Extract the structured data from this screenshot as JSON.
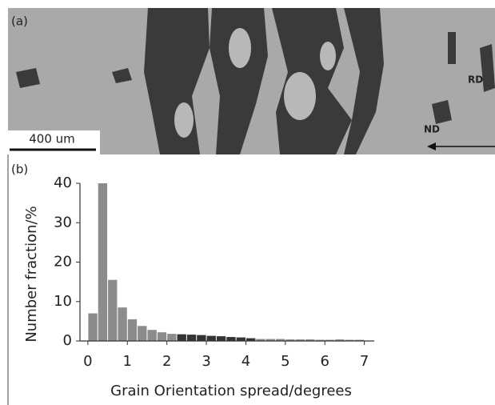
{
  "micrograph": {
    "panel_label": "(a)",
    "direction_labels": [
      "RD",
      "ND"
    ],
    "scale_bar": "400 um"
  },
  "chart_data": {
    "type": "histogram",
    "panel_label": "(b)",
    "xlabel": "Grain Orientation spread/degrees",
    "ylabel": "Number fraction/%",
    "bins": [
      0,
      0.25,
      0.5,
      0.75,
      1,
      1.25,
      1.5,
      1.75,
      2,
      2.25,
      2.5,
      2.75,
      3,
      3.25,
      3.5,
      3.75,
      4,
      4.25,
      4.5,
      4.75,
      5,
      5.25,
      5.5,
      5.75,
      6,
      6.25,
      6.5,
      6.75,
      7
    ],
    "values": [
      7,
      40,
      15.5,
      8.5,
      5.5,
      3.8,
      2.8,
      2.2,
      1.8,
      1.7,
      1.6,
      1.5,
      1.3,
      1.2,
      1,
      0.9,
      0.7,
      0.5,
      0.5,
      0.5,
      0.4,
      0.4,
      0.4,
      0.3,
      0.3,
      0.4,
      0.3,
      0.3
    ],
    "colors": [
      "#8c8c8c",
      "#8c8c8c",
      "#8c8c8c",
      "#8c8c8c",
      "#8c8c8c",
      "#8c8c8c",
      "#8c8c8c",
      "#8c8c8c",
      "#8c8c8c",
      "#333333",
      "#333333",
      "#333333",
      "#333333",
      "#333333",
      "#333333",
      "#333333",
      "#333333",
      "#8c8c8c",
      "#8c8c8c",
      "#8c8c8c",
      "#8c8c8c",
      "#8c8c8c",
      "#8c8c8c",
      "#8c8c8c",
      "#8c8c8c",
      "#8c8c8c",
      "#8c8c8c",
      "#8c8c8c"
    ],
    "xlim": [
      -0.2,
      7.25
    ],
    "ylim": [
      0,
      40
    ],
    "xticks": [
      0,
      1,
      2,
      3,
      4,
      5,
      6,
      7
    ],
    "yticks": [
      0,
      10,
      20,
      30,
      40
    ]
  }
}
